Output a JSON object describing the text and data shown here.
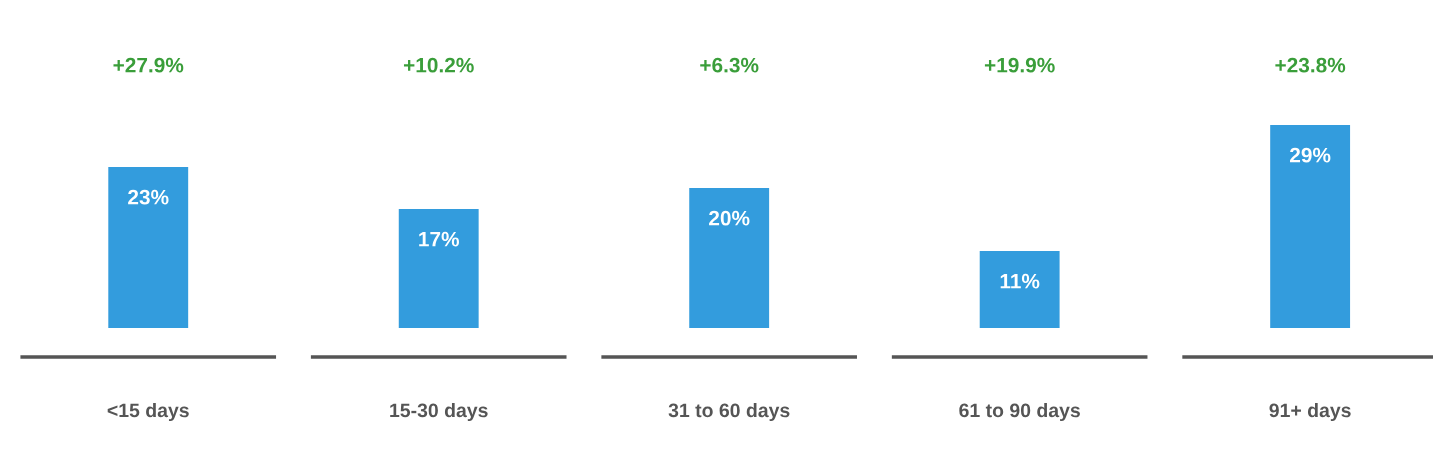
{
  "chart_data": {
    "type": "bar",
    "categories": [
      "<15 days",
      "15-30 days",
      "31 to 60 days",
      "61 to 90 days",
      "91+ days"
    ],
    "values": [
      23,
      17,
      20,
      11,
      29
    ],
    "value_labels": [
      "23%",
      "17%",
      "20%",
      "11%",
      "29%"
    ],
    "color": "#339cdd",
    "annotations": [
      "+27.9%",
      "+10.2%",
      "+6.3%",
      "+19.9%",
      "+23.8%"
    ]
  }
}
